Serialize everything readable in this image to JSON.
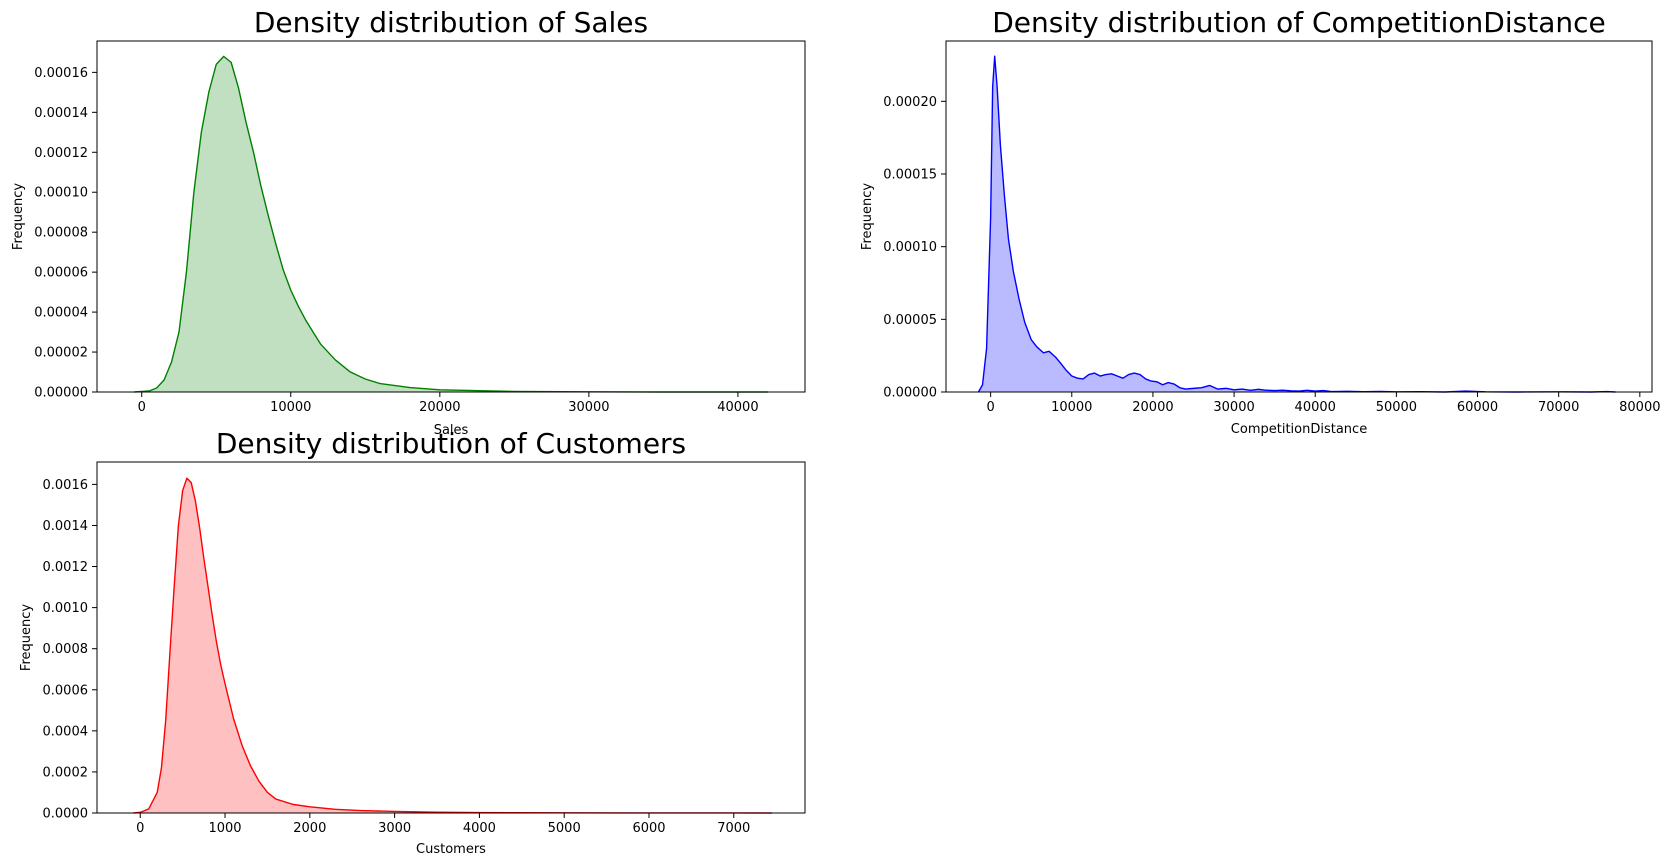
{
  "chart_data": [
    {
      "type": "area",
      "title": "Density distribution of Sales",
      "xlabel": "Sales",
      "ylabel": "Frequency",
      "xlim": [
        -3000,
        44500
      ],
      "ylim": [
        0,
        0.0001757
      ],
      "xticks": [
        0,
        10000,
        20000,
        30000,
        40000
      ],
      "xtick_labels": [
        "0",
        "10000",
        "20000",
        "30000",
        "40000"
      ],
      "yticks": [
        0,
        2e-05,
        4e-05,
        6e-05,
        8e-05,
        0.0001,
        0.00012,
        0.00014,
        0.00016
      ],
      "ytick_labels": [
        "0.00000",
        "0.00002",
        "0.00004",
        "0.00006",
        "0.00008",
        "0.00010",
        "0.00012",
        "0.00014",
        "0.00016"
      ],
      "color": "#008000",
      "fill_color": "#c1e0c1",
      "series": [
        {
          "x": [
            -500,
            500,
            1000,
            1500,
            2000,
            2500,
            3000,
            3500,
            4000,
            4500,
            5000,
            5500,
            6000,
            6500,
            7000,
            7500,
            8000,
            8500,
            9000,
            9500,
            10000,
            10500,
            11000,
            11500,
            12000,
            13000,
            14000,
            15000,
            16000,
            18000,
            20000,
            25000,
            30000,
            35000,
            42000
          ],
          "y": [
            0,
            5e-07,
            2e-06,
            6e-06,
            1.5e-05,
            3e-05,
            6e-05,
            0.0001,
            0.00013,
            0.00015,
            0.000164,
            0.000168,
            0.000165,
            0.000152,
            0.000135,
            0.00012,
            0.000103,
            8.8e-05,
            7.4e-05,
            6.1e-05,
            5.1e-05,
            4.3e-05,
            3.6e-05,
            3e-05,
            2.4e-05,
            1.6e-05,
            1e-05,
            6.5e-06,
            4.2e-06,
            2.2e-06,
            1.1e-06,
            3e-07,
            1e-07,
            0,
            0
          ]
        }
      ]
    },
    {
      "type": "area",
      "title": "Density distribution of CompetitionDistance",
      "xlabel": "CompetitionDistance",
      "ylabel": "Frequency",
      "xlim": [
        -5500,
        81500
      ],
      "ylim": [
        0,
        0.0002415
      ],
      "xticks": [
        0,
        10000,
        20000,
        30000,
        40000,
        50000,
        60000,
        70000,
        80000
      ],
      "xtick_labels": [
        "0",
        "10000",
        "20000",
        "30000",
        "40000",
        "50000",
        "60000",
        "70000",
        "80000"
      ],
      "yticks": [
        0,
        5e-05,
        0.0001,
        0.00015,
        0.0002
      ],
      "ytick_labels": [
        "0.00000",
        "0.00005",
        "0.00010",
        "0.00015",
        "0.00020"
      ],
      "color": "#0000ff",
      "fill_color": "#babafe",
      "series": [
        {
          "x": [
            -1500,
            -1000,
            -500,
            0,
            250,
            500,
            800,
            1200,
            1700,
            2200,
            2800,
            3500,
            4200,
            5000,
            5700,
            6500,
            7200,
            8000,
            8600,
            9300,
            10000,
            10700,
            11400,
            12100,
            12800,
            13500,
            14200,
            14900,
            15600,
            16300,
            17000,
            17700,
            18400,
            19100,
            19800,
            20500,
            21200,
            21900,
            22600,
            23300,
            24000,
            25000,
            26000,
            27000,
            28000,
            29000,
            30000,
            31000,
            32000,
            33000,
            34000,
            35000,
            36000,
            37000,
            38000,
            39000,
            40000,
            41000,
            42000,
            44000,
            46000,
            48000,
            50000,
            53000,
            56000,
            58500,
            61000,
            65000,
            70000,
            74000,
            76000,
            77000
          ],
          "y": [
            0,
            5e-06,
            3e-05,
            0.00012,
            0.00021,
            0.000231,
            0.00021,
            0.00017,
            0.000135,
            0.000105,
            8.3e-05,
            6.4e-05,
            4.8e-05,
            3.6e-05,
            3.1e-05,
            2.7e-05,
            2.8e-05,
            2.4e-05,
            2e-05,
            1.5e-05,
            1.1e-05,
            9.5e-06,
            9e-06,
            1.2e-05,
            1.3e-05,
            1.1e-05,
            1.2e-05,
            1.25e-05,
            1.1e-05,
            9.5e-06,
            1.2e-05,
            1.3e-05,
            1.2e-05,
            9e-06,
            7.5e-06,
            7e-06,
            5e-06,
            6.5e-06,
            5.5e-06,
            3e-06,
            2e-06,
            2.5e-06,
            3e-06,
            4.5e-06,
            2e-06,
            2.5e-06,
            1.5e-06,
            2e-06,
            1.2e-06,
            1.8e-06,
            1.2e-06,
            1e-06,
            1.2e-06,
            8e-07,
            6e-07,
            1.2e-06,
            6e-07,
            1e-06,
            3e-07,
            5e-07,
            2e-07,
            4e-07,
            1e-07,
            2e-07,
            0,
            6e-07,
            1e-07,
            0,
            1e-07,
            0,
            3e-07,
            0
          ]
        }
      ]
    },
    {
      "type": "area",
      "title": "Density distribution of Customers",
      "xlabel": "Customers",
      "ylabel": "Frequency",
      "xlim": [
        -510,
        7840
      ],
      "ylim": [
        0,
        0.001709
      ],
      "xticks": [
        0,
        1000,
        2000,
        3000,
        4000,
        5000,
        6000,
        7000
      ],
      "xtick_labels": [
        "0",
        "1000",
        "2000",
        "3000",
        "4000",
        "5000",
        "6000",
        "7000"
      ],
      "yticks": [
        0,
        0.0002,
        0.0004,
        0.0006,
        0.0008,
        0.001,
        0.0012,
        0.0014,
        0.0016
      ],
      "ytick_labels": [
        "0.0000",
        "0.0002",
        "0.0004",
        "0.0006",
        "0.0008",
        "0.0010",
        "0.0012",
        "0.0014",
        "0.0016"
      ],
      "color": "#ff0000",
      "fill_color": "#fec0c0",
      "series": [
        {
          "x": [
            -80,
            0,
            100,
            200,
            250,
            300,
            350,
            400,
            450,
            500,
            550,
            600,
            650,
            700,
            750,
            800,
            850,
            900,
            950,
            1000,
            1100,
            1200,
            1300,
            1400,
            1500,
            1600,
            1800,
            2000,
            2300,
            2600,
            3000,
            3500,
            4000,
            5000,
            6000,
            7000,
            7450
          ],
          "y": [
            0,
            3e-06,
            2e-05,
            0.0001,
            0.00022,
            0.00045,
            0.00078,
            0.0011,
            0.0014,
            0.00157,
            0.00163,
            0.00161,
            0.00152,
            0.00139,
            0.00124,
            0.0011,
            0.00096,
            0.00083,
            0.00072,
            0.00063,
            0.00046,
            0.00033,
            0.00023,
            0.000155,
            0.0001,
            6.8e-05,
            4.2e-05,
            3e-05,
            1.8e-05,
            1.2e-05,
            7.5e-06,
            4e-06,
            2e-06,
            8e-07,
            3e-07,
            1e-07,
            0
          ]
        }
      ]
    }
  ]
}
